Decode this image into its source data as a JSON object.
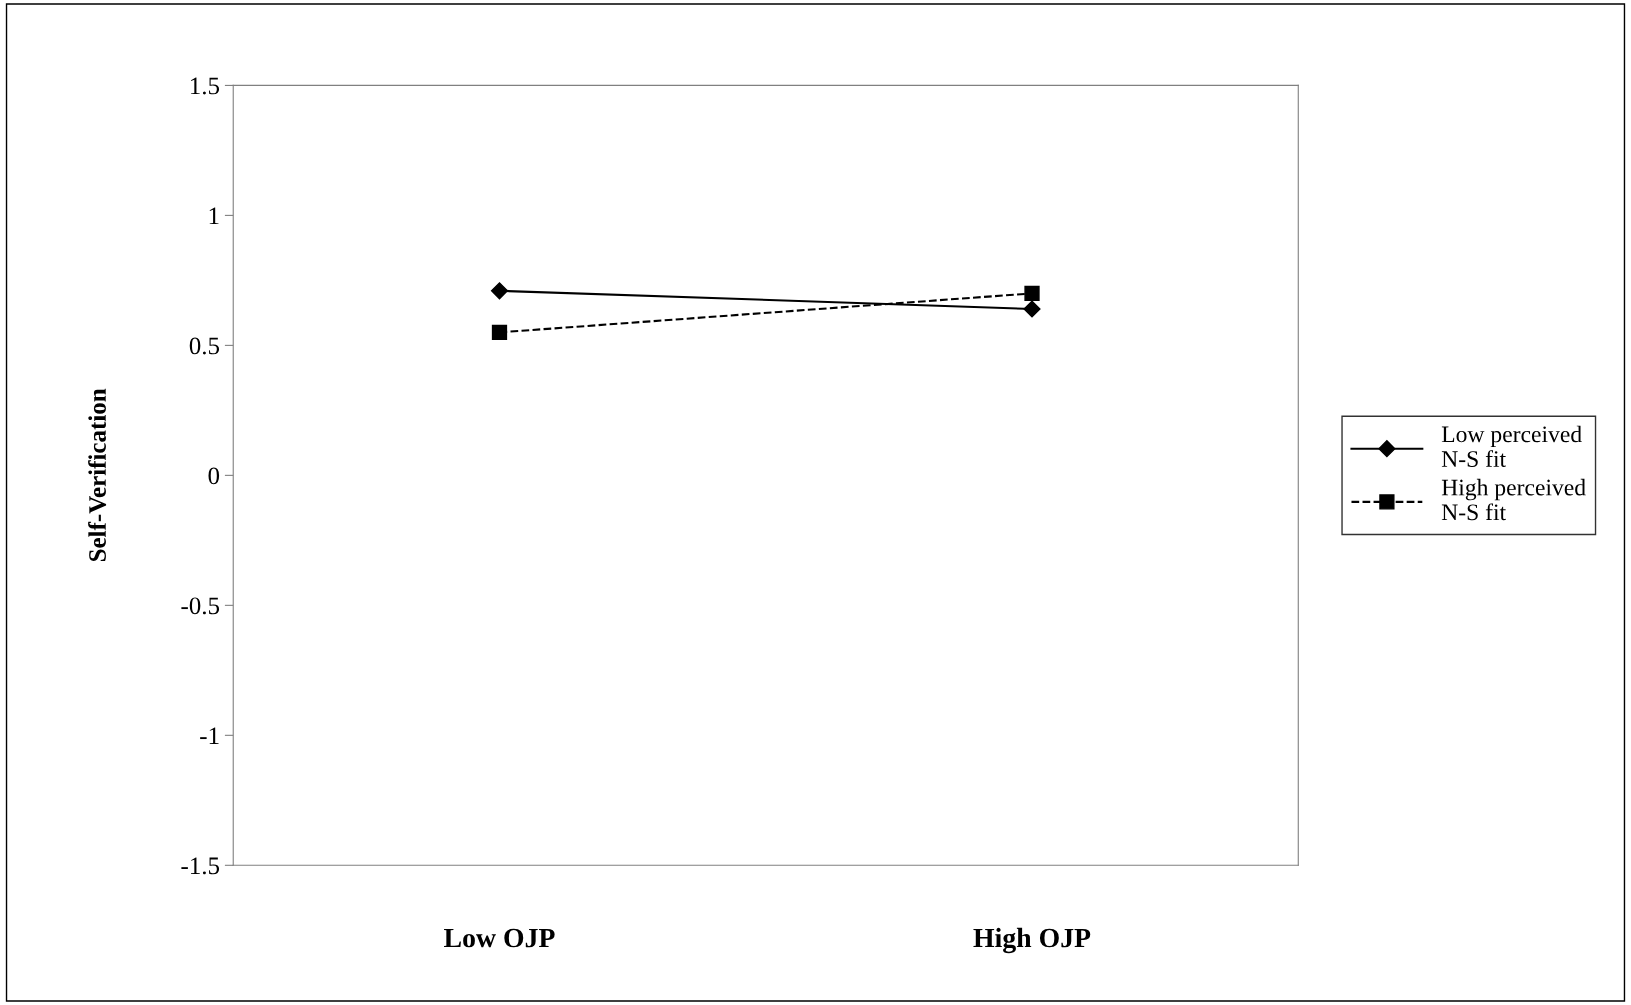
{
  "chart_data": {
    "type": "line",
    "ylabel": "Self-Verification",
    "categories": [
      "Low OJP",
      "High OJP"
    ],
    "series": [
      {
        "name": "Low perceived\nN-S fit",
        "color": "#000000",
        "values": [
          0.71,
          0.64
        ],
        "marker": "diamond",
        "line_style": "solid"
      },
      {
        "name": "High perceived\nN-S fit",
        "color": "#000000",
        "values": [
          0.55,
          0.7
        ],
        "marker": "square",
        "line_style": "dashed"
      }
    ],
    "ylim": [
      -1.5,
      1.5
    ],
    "yticks": [
      -1.5,
      -1,
      -0.5,
      0,
      0.5,
      1,
      1.5
    ],
    "grid": false,
    "legend": "right"
  }
}
